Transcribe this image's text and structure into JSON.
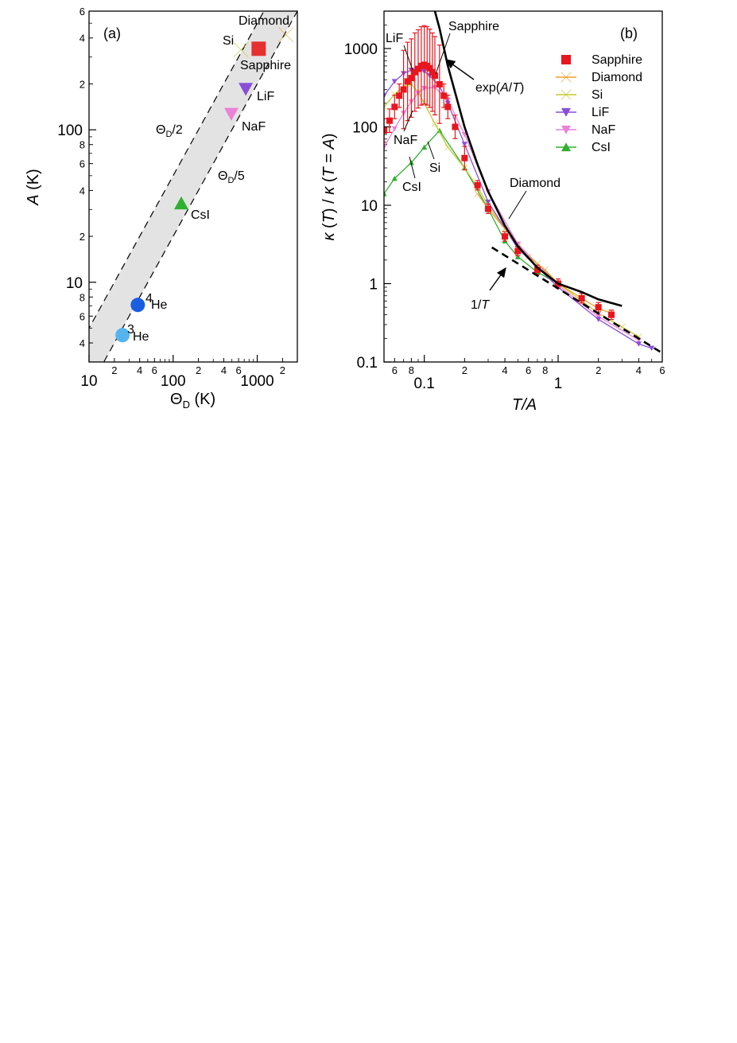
{
  "chart_data": [
    {
      "type": "scatter",
      "panel_label": "(a)",
      "xlabel": "Θ_D (K)",
      "ylabel": "A (K)",
      "xscale": "log",
      "yscale": "log",
      "xlim": [
        10,
        3000
      ],
      "ylim": [
        3,
        600
      ],
      "x_tick_labels": [
        "10",
        "100",
        "1000"
      ],
      "y_tick_labels": [
        "10",
        "100"
      ],
      "x_minor_tick_labels": [
        "2",
        "4",
        "6",
        "2",
        "4",
        "6",
        "2"
      ],
      "y_minor_tick_labels": [
        "4",
        "6",
        "8",
        "2",
        "4",
        "6",
        "8",
        "2",
        "4",
        "6"
      ],
      "band_lines": [
        {
          "name": "Θ_D/2",
          "label": "Θ_D/2",
          "factor": 0.5
        },
        {
          "name": "Θ_D/5",
          "label": "Θ_D/5",
          "factor": 0.2
        }
      ],
      "points": [
        {
          "label": "Diamond",
          "x": 2200,
          "y": 420,
          "marker": "bowtie",
          "color": "#f0a02a"
        },
        {
          "label": "Sapphire",
          "x": 1040,
          "y": 340,
          "marker": "square",
          "color": "#e63030"
        },
        {
          "label": "Si",
          "x": 640,
          "y": 335,
          "marker": "bowtie",
          "color": "#c8c832"
        },
        {
          "label": "LiF",
          "x": 730,
          "y": 185,
          "marker": "triangle-down",
          "color": "#8a4fd8"
        },
        {
          "label": "NaF",
          "x": 492,
          "y": 127,
          "marker": "triangle-down",
          "color": "#ea82d8"
        },
        {
          "label": "CsI",
          "x": 125,
          "y": 33,
          "marker": "triangle-up",
          "color": "#30b030"
        },
        {
          "label": "4He",
          "x": 38,
          "y": 7.1,
          "marker": "circle",
          "color": "#1a5ee0"
        },
        {
          "label": "3He",
          "x": 25,
          "y": 4.5,
          "marker": "circle",
          "color": "#55b4ee"
        }
      ],
      "point_labels": {
        "diamond": "Diamond",
        "sapphire": "Sapphire",
        "si": "Si",
        "lif": "LiF",
        "naf": "NaF",
        "csi": "CsI",
        "he4_sup": "4",
        "he4": "He",
        "he3_sup": "3",
        "he3": "He"
      }
    },
    {
      "type": "line",
      "panel_label": "(b)",
      "xlabel": "T/A",
      "ylabel": "κ (T) / κ (T = A)",
      "xscale": "log",
      "yscale": "log",
      "xlim": [
        0.05,
        6
      ],
      "ylim": [
        0.1,
        3000
      ],
      "x_tick_labels": [
        "0.1",
        "1"
      ],
      "y_tick_labels": [
        "0.1",
        "1",
        "10",
        "100",
        "1000"
      ],
      "x_minor_tick_labels": [
        "6",
        "8",
        "2",
        "4",
        "6",
        "8",
        "2",
        "4",
        "6"
      ],
      "legend": {
        "placement": "top-right",
        "entries": [
          "Sapphire",
          "Diamond",
          "Si",
          "LiF",
          "NaF",
          "CsI"
        ]
      },
      "series": [
        {
          "name": "Sapphire",
          "color": "#e8161e",
          "marker": "square",
          "x": [
            0.05,
            0.055,
            0.06,
            0.065,
            0.07,
            0.075,
            0.08,
            0.085,
            0.09,
            0.095,
            0.1,
            0.105,
            0.11,
            0.115,
            0.12,
            0.13,
            0.14,
            0.15,
            0.17,
            0.2,
            0.25,
            0.3,
            0.4,
            0.5,
            0.7,
            1.0,
            1.5,
            2.0,
            2.5
          ],
          "y": [
            90,
            120,
            180,
            250,
            300,
            380,
            420,
            500,
            550,
            600,
            620,
            600,
            560,
            500,
            450,
            350,
            250,
            180,
            100,
            40,
            18,
            9,
            4,
            2.6,
            1.5,
            1.0,
            0.65,
            0.5,
            0.4
          ],
          "error_bars": true
        },
        {
          "name": "Diamond",
          "color": "#f0a02a",
          "marker": "bowtie",
          "x": [
            0.25,
            0.3,
            0.4,
            0.5,
            0.6,
            0.8,
            1.0,
            1.5,
            2.0,
            2.5
          ],
          "y": [
            14,
            9,
            5,
            3,
            2.2,
            1.5,
            1.0,
            0.65,
            0.48,
            0.42
          ]
        },
        {
          "name": "Si",
          "color": "#c8c832",
          "marker": "bowtie",
          "x": [
            0.05,
            0.06,
            0.07,
            0.08,
            0.09,
            0.1,
            0.12,
            0.15,
            0.2,
            0.25,
            0.3,
            0.4,
            0.5,
            0.7,
            1.0,
            1.5,
            2.0,
            3.0,
            4.0
          ],
          "y": [
            180,
            260,
            330,
            350,
            280,
            200,
            110,
            55,
            30,
            17,
            10,
            5,
            3.2,
            1.8,
            1.0,
            0.6,
            0.42,
            0.28,
            0.21
          ]
        },
        {
          "name": "LiF",
          "color": "#8a4fd8",
          "marker": "triangle-down",
          "x": [
            0.05,
            0.06,
            0.07,
            0.08,
            0.09,
            0.1,
            0.11,
            0.13,
            0.15,
            0.2,
            0.3,
            0.5,
            1.0,
            2.0,
            4.0,
            5.0
          ],
          "y": [
            250,
            380,
            480,
            530,
            540,
            510,
            450,
            330,
            200,
            60,
            11,
            2.8,
            0.9,
            0.35,
            0.17,
            0.15
          ]
        },
        {
          "name": "NaF",
          "color": "#ea82d8",
          "marker": "triangle-down",
          "x": [
            0.05,
            0.06,
            0.07,
            0.08,
            0.09,
            0.1,
            0.12,
            0.15,
            0.2,
            0.3,
            0.5,
            1.0,
            2.0,
            4.0
          ],
          "y": [
            55,
            95,
            150,
            210,
            270,
            310,
            320,
            220,
            80,
            15,
            3.2,
            0.95,
            0.38,
            0.19
          ]
        },
        {
          "name": "CsI",
          "color": "#30b030",
          "marker": "triangle-up",
          "x": [
            0.05,
            0.06,
            0.08,
            0.1,
            0.13,
            0.2,
            0.3,
            0.4,
            0.5,
            0.7,
            1.0
          ],
          "y": [
            14,
            22,
            35,
            55,
            90,
            30,
            9,
            3.5,
            2.2,
            1.4,
            1.0
          ]
        }
      ],
      "reference_curves": [
        {
          "label": "exp(A/T)",
          "style": "solid",
          "color": "#000000",
          "x": [
            0.12,
            0.13,
            0.15,
            0.2,
            0.25,
            0.3,
            0.4,
            0.5,
            0.7,
            1.0,
            1.5,
            2.0,
            3.0
          ],
          "y": [
            3000,
            1800,
            600,
            100,
            33,
            15,
            5.5,
            3.0,
            1.6,
            1.0,
            0.78,
            0.63,
            0.52
          ]
        },
        {
          "label": "1/T",
          "style": "dashed",
          "color": "#000000",
          "x": [
            0.32,
            6.0
          ],
          "y": [
            2.9,
            0.13
          ]
        }
      ],
      "annotation_text": {
        "lif": "LiF",
        "sapphire": "Sapphire",
        "naf": "NaF",
        "si": "Si",
        "csi": "CsI",
        "diamond": "Diamond",
        "exp": "exp(",
        "exp_a": "A",
        "exp_mid": "/",
        "exp_t": "T",
        "exp_end": ")",
        "inv_one": "1/",
        "inv_t": "T"
      }
    }
  ]
}
